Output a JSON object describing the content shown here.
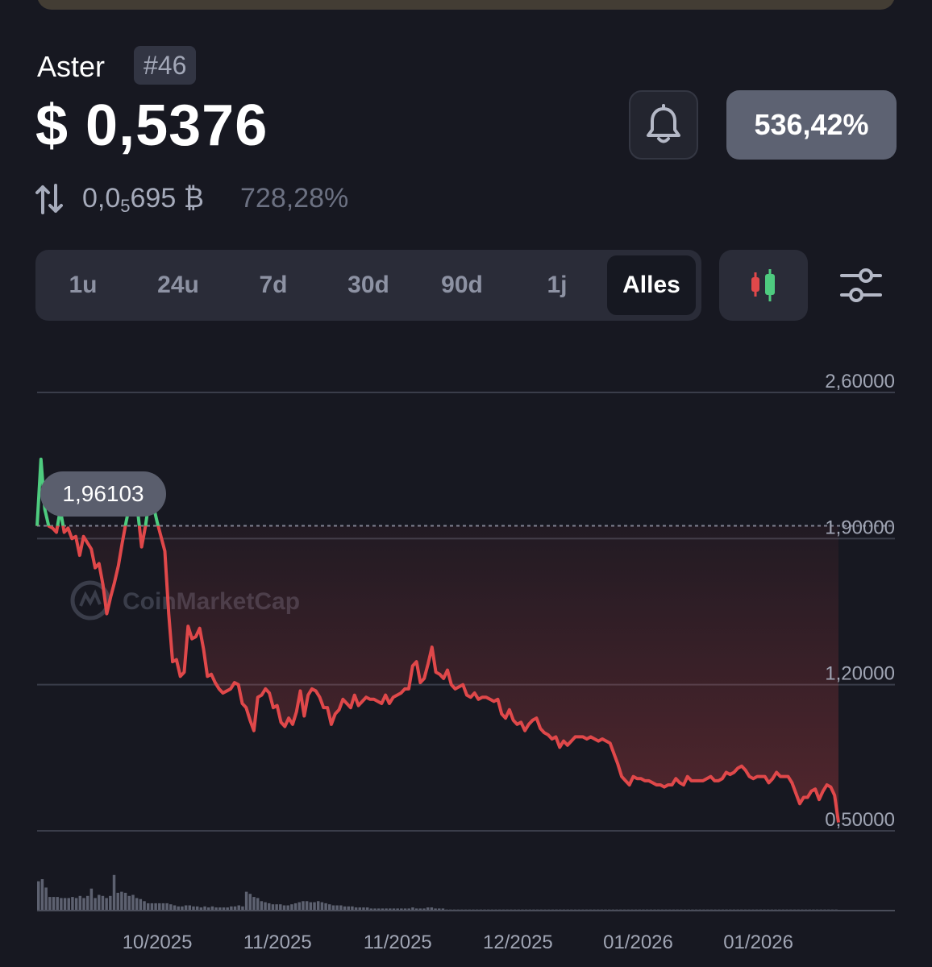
{
  "header": {
    "coin_name": "Aster",
    "rank": "#46",
    "price": "$ 0,5376",
    "change_button": "536,42%",
    "btc_price_prefix": "0,0",
    "btc_price_sub": "5",
    "btc_price_suffix": "695 ₿",
    "btc_change": "728,28%"
  },
  "range_tabs": [
    {
      "label": "1u",
      "active": false
    },
    {
      "label": "24u",
      "active": false
    },
    {
      "label": "7d",
      "active": false
    },
    {
      "label": "30d",
      "active": false
    },
    {
      "label": "90d",
      "active": false
    },
    {
      "label": "1j",
      "active": false
    },
    {
      "label": "Alles",
      "active": true
    }
  ],
  "icons": {
    "bell": "bell-icon",
    "swap": "swap-arrows-icon",
    "candles": "candlestick-icon",
    "settings": "sliders-icon"
  },
  "colors": {
    "up": "#4ecb7f",
    "down": "#e0484a",
    "pct_button": "#5d6272"
  },
  "chart_data": {
    "type": "line",
    "watermark": "CoinMarketCap",
    "tooltip_value": "1,96103",
    "reference_value": 1.96103,
    "y_ticks": [
      "2,60000",
      "1,90000",
      "1,20000",
      "0,50000"
    ],
    "ylim": [
      0.5,
      2.6
    ],
    "x_labels": [
      "10/2025",
      "11/2025",
      "11/2025",
      "12/2025",
      "01/2026",
      "01/2026"
    ],
    "x_range": [
      0,
      200
    ],
    "x_label_positions": [
      30,
      60,
      90,
      120,
      150,
      180
    ],
    "series": [
      {
        "values": [
          1.96,
          2.28,
          2.04,
          1.96,
          1.95,
          1.93,
          2.04,
          1.93,
          1.95,
          1.9,
          1.91,
          1.82,
          1.91,
          1.88,
          1.85,
          1.76,
          1.78,
          1.68,
          1.54,
          1.62,
          1.69,
          1.77,
          1.88,
          1.98,
          2.07,
          2.08,
          2.03,
          1.86,
          1.96,
          2.09,
          2.06,
          1.98,
          1.91,
          1.84,
          1.54,
          1.31,
          1.32,
          1.24,
          1.26,
          1.48,
          1.42,
          1.43,
          1.47,
          1.37,
          1.24,
          1.25,
          1.21,
          1.18,
          1.16,
          1.17,
          1.18,
          1.21,
          1.2,
          1.11,
          1.09,
          1.03,
          0.98,
          1.14,
          1.15,
          1.18,
          1.16,
          1.09,
          1.1,
          1.02,
          1.0,
          1.04,
          1.01,
          1.07,
          1.17,
          1.05,
          1.15,
          1.18,
          1.17,
          1.14,
          1.09,
          1.09,
          1.01,
          1.06,
          1.08,
          1.13,
          1.11,
          1.09,
          1.15,
          1.1,
          1.12,
          1.14,
          1.13,
          1.13,
          1.12,
          1.11,
          1.15,
          1.11,
          1.14,
          1.15,
          1.16,
          1.18,
          1.18,
          1.29,
          1.31,
          1.21,
          1.23,
          1.3,
          1.38,
          1.26,
          1.25,
          1.23,
          1.27,
          1.2,
          1.18,
          1.19,
          1.2,
          1.15,
          1.14,
          1.16,
          1.13,
          1.14,
          1.14,
          1.13,
          1.12,
          1.13,
          1.06,
          1.04,
          1.08,
          1.03,
          1.01,
          1.02,
          0.98,
          1.01,
          1.03,
          1.04,
          0.99,
          0.97,
          0.96,
          0.94,
          0.95,
          0.9,
          0.93,
          0.91,
          0.93,
          0.95,
          0.95,
          0.95,
          0.94,
          0.95,
          0.94,
          0.93,
          0.94,
          0.93,
          0.92,
          0.87,
          0.82,
          0.76,
          0.74,
          0.72,
          0.76,
          0.75,
          0.75,
          0.74,
          0.74,
          0.73,
          0.72,
          0.72,
          0.71,
          0.72,
          0.72,
          0.75,
          0.73,
          0.72,
          0.76,
          0.74,
          0.74,
          0.74,
          0.74,
          0.75,
          0.76,
          0.74,
          0.74,
          0.75,
          0.78,
          0.77,
          0.78,
          0.8,
          0.81,
          0.79,
          0.76,
          0.75,
          0.76,
          0.76,
          0.76,
          0.73,
          0.75,
          0.78,
          0.76,
          0.76,
          0.76,
          0.73,
          0.68,
          0.63,
          0.66,
          0.66,
          0.69,
          0.7,
          0.65,
          0.69,
          0.72,
          0.71,
          0.67,
          0.54
        ]
      }
    ],
    "volume": [
      0.28,
      0.3,
      0.22,
      0.13,
      0.13,
      0.13,
      0.12,
      0.12,
      0.12,
      0.13,
      0.12,
      0.14,
      0.12,
      0.14,
      0.21,
      0.12,
      0.15,
      0.14,
      0.12,
      0.14,
      0.34,
      0.17,
      0.18,
      0.17,
      0.14,
      0.15,
      0.12,
      0.11,
      0.09,
      0.07,
      0.07,
      0.07,
      0.07,
      0.07,
      0.07,
      0.06,
      0.05,
      0.04,
      0.04,
      0.05,
      0.05,
      0.04,
      0.04,
      0.03,
      0.04,
      0.03,
      0.04,
      0.03,
      0.03,
      0.03,
      0.03,
      0.04,
      0.04,
      0.05,
      0.04,
      0.18,
      0.16,
      0.13,
      0.12,
      0.09,
      0.08,
      0.07,
      0.06,
      0.06,
      0.06,
      0.05,
      0.05,
      0.06,
      0.07,
      0.08,
      0.09,
      0.09,
      0.08,
      0.08,
      0.09,
      0.08,
      0.07,
      0.06,
      0.05,
      0.05,
      0.05,
      0.04,
      0.04,
      0.04,
      0.03,
      0.03,
      0.03,
      0.03,
      0.02,
      0.02,
      0.02,
      0.02,
      0.02,
      0.02,
      0.02,
      0.02,
      0.02,
      0.02,
      0.02,
      0.03,
      0.02,
      0.02,
      0.02,
      0.03,
      0.03,
      0.02,
      0.02,
      0.02,
      0.01,
      0.01,
      0.01,
      0.01,
      0.01,
      0.01,
      0.01,
      0.01,
      0.01,
      0.01,
      0.01,
      0.01,
      0.01,
      0.01,
      0.01,
      0.01,
      0.01,
      0.01,
      0.01,
      0.01,
      0.01,
      0.01,
      0.01,
      0.01,
      0.01,
      0.01,
      0.01,
      0.01,
      0.01,
      0.01,
      0.01,
      0.01,
      0.01,
      0.01,
      0.01,
      0.01,
      0.01,
      0.01,
      0.01,
      0.01,
      0.01,
      0.01,
      0.01,
      0.01,
      0.01,
      0.01,
      0.01,
      0.01,
      0.01,
      0.01,
      0.01,
      0.01,
      0.01,
      0.01,
      0.01,
      0.01,
      0.01,
      0.01,
      0.01,
      0.01,
      0.01,
      0.01,
      0.01,
      0.01,
      0.01,
      0.01,
      0.01,
      0.01,
      0.01,
      0.01,
      0.01,
      0.01,
      0.01,
      0.01,
      0.01,
      0.01,
      0.01,
      0.01,
      0.01,
      0.01,
      0.01,
      0.01,
      0.01,
      0.01,
      0.01,
      0.01,
      0.01,
      0.01,
      0.01,
      0.01,
      0.01,
      0.01,
      0.01,
      0.01,
      0.01,
      0.01,
      0.01,
      0.01,
      0.01,
      0.01,
      0.01,
      0.01,
      0.01,
      0.01
    ]
  }
}
